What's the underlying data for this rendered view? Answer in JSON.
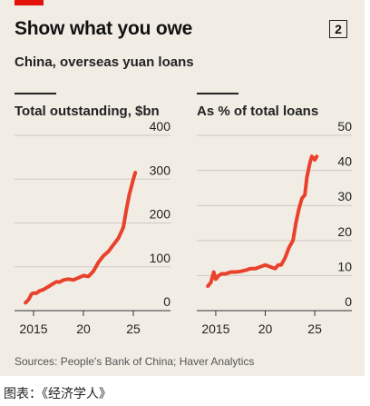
{
  "title": "Show what you owe",
  "badge": "2",
  "subtitle": "China, overseas yuan loans",
  "source": "Sources: People's Bank of China; Haver Analytics",
  "caption": "图表：《经济学人》",
  "colors": {
    "line": "#e8412c",
    "background": "#f1ede5",
    "grid": "#cfcac1",
    "accent": "#e3120b"
  },
  "chart_data": [
    {
      "type": "line",
      "title": "Total outstanding, $bn",
      "ylim": [
        0,
        400
      ],
      "yticks": [
        0,
        100,
        200,
        300,
        400
      ],
      "xlim": [
        2014,
        2026
      ],
      "xticks": [
        2015,
        2020,
        2025
      ],
      "xtick_labels": [
        "2015",
        "20",
        "25"
      ],
      "y_axis_position": "right",
      "series": [
        {
          "x": [
            2014.2,
            2014.5,
            2014.8,
            2015.0,
            2015.3,
            2015.6,
            2016.0,
            2016.5,
            2017.0,
            2017.3,
            2017.6,
            2018.0,
            2018.5,
            2019.0,
            2019.5,
            2020.0,
            2020.5,
            2021.0,
            2021.5,
            2022.0,
            2022.5,
            2023.0,
            2023.5,
            2024.0,
            2024.3,
            2024.6,
            2024.8,
            2025.0,
            2025.2
          ],
          "y": [
            18,
            25,
            38,
            40,
            40,
            45,
            48,
            55,
            62,
            66,
            65,
            70,
            72,
            70,
            75,
            80,
            78,
            90,
            110,
            125,
            135,
            150,
            165,
            190,
            230,
            265,
            282,
            300,
            315
          ]
        }
      ]
    },
    {
      "type": "line",
      "title": "As % of total loans",
      "ylim": [
        0,
        50
      ],
      "yticks": [
        0,
        10,
        20,
        30,
        40,
        50
      ],
      "xlim": [
        2014,
        2026
      ],
      "xticks": [
        2015,
        2020,
        2025
      ],
      "xtick_labels": [
        "2015",
        "20",
        "25"
      ],
      "y_axis_position": "right",
      "series": [
        {
          "x": [
            2014.2,
            2014.5,
            2014.8,
            2015.0,
            2015.3,
            2015.6,
            2016.0,
            2016.5,
            2017.0,
            2017.5,
            2018.0,
            2018.5,
            2019.0,
            2019.5,
            2020.0,
            2020.5,
            2021.0,
            2021.3,
            2021.6,
            2022.0,
            2022.4,
            2022.8,
            2023.1,
            2023.4,
            2023.7,
            2024.0,
            2024.2,
            2024.5,
            2024.7,
            2025.0,
            2025.2
          ],
          "y": [
            7,
            8,
            11,
            9,
            10,
            10.5,
            10.5,
            11,
            11,
            11.2,
            11.5,
            12,
            12,
            12.5,
            13,
            12.5,
            12,
            13,
            13,
            15,
            18,
            20,
            25,
            29,
            32,
            33,
            38,
            42,
            44,
            43,
            44
          ]
        }
      ]
    }
  ]
}
